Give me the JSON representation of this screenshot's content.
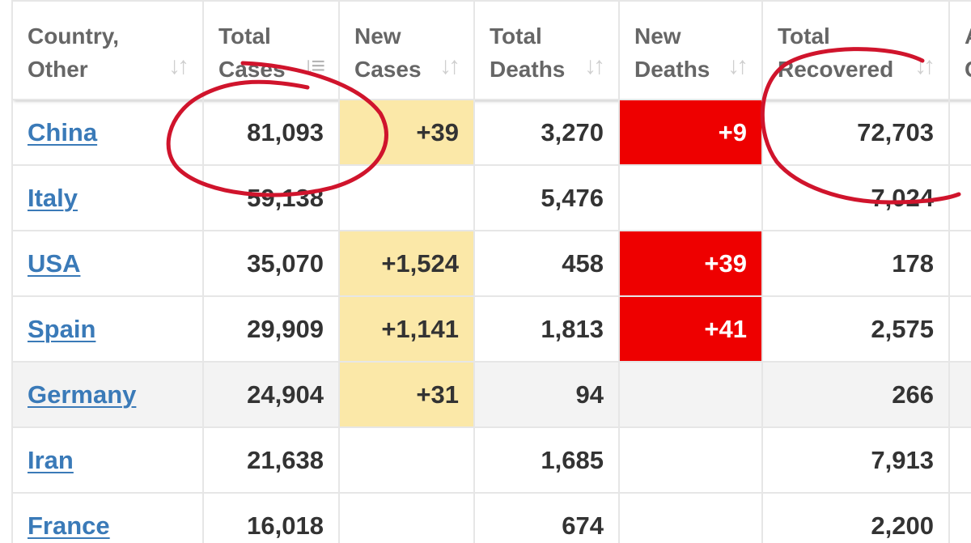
{
  "table": {
    "headers": [
      {
        "line1": "Country,",
        "line2": "Other",
        "sort_icon": "sort-arrows-icon"
      },
      {
        "line1": "Total",
        "line2": "Cases",
        "sort_icon": "sort-descending-icon"
      },
      {
        "line1": "New",
        "line2": "Cases",
        "sort_icon": "sort-arrows-icon"
      },
      {
        "line1": "Total",
        "line2": "Deaths",
        "sort_icon": "sort-arrows-icon"
      },
      {
        "line1": "New",
        "line2": "Deaths",
        "sort_icon": "sort-arrows-icon"
      },
      {
        "line1": "Total",
        "line2": "Recovered",
        "sort_icon": "sort-arrows-icon"
      },
      {
        "line1": "A",
        "line2": "C",
        "sort_icon": ""
      }
    ],
    "rows": [
      {
        "country": "China",
        "total_cases": "81,093",
        "new_cases": "+39",
        "total_deaths": "3,270",
        "new_deaths": "+9",
        "total_recovered": "72,703"
      },
      {
        "country": "Italy",
        "total_cases": "59,138",
        "new_cases": "",
        "total_deaths": "5,476",
        "new_deaths": "",
        "total_recovered": "7,024"
      },
      {
        "country": "USA",
        "total_cases": "35,070",
        "new_cases": "+1,524",
        "total_deaths": "458",
        "new_deaths": "+39",
        "total_recovered": "178"
      },
      {
        "country": "Spain",
        "total_cases": "29,909",
        "new_cases": "+1,141",
        "total_deaths": "1,813",
        "new_deaths": "+41",
        "total_recovered": "2,575"
      },
      {
        "country": "Germany",
        "total_cases": "24,904",
        "new_cases": "+31",
        "total_deaths": "94",
        "new_deaths": "",
        "total_recovered": "266"
      },
      {
        "country": "Iran",
        "total_cases": "21,638",
        "new_cases": "",
        "total_deaths": "1,685",
        "new_deaths": "",
        "total_recovered": "7,913"
      },
      {
        "country": "France",
        "total_cases": "16,018",
        "new_cases": "",
        "total_deaths": "674",
        "new_deaths": "",
        "total_recovered": "2,200"
      }
    ]
  },
  "colors": {
    "link": "#3a7ab8",
    "new_cases_highlight": "#fbe8a8",
    "new_deaths_highlight": "#ee0000",
    "annotation_ink": "#d0142c"
  },
  "annotations": [
    {
      "type": "hand-drawn-circle",
      "target": "China total cases"
    },
    {
      "type": "hand-drawn-circle",
      "target": "China total recovered"
    }
  ]
}
